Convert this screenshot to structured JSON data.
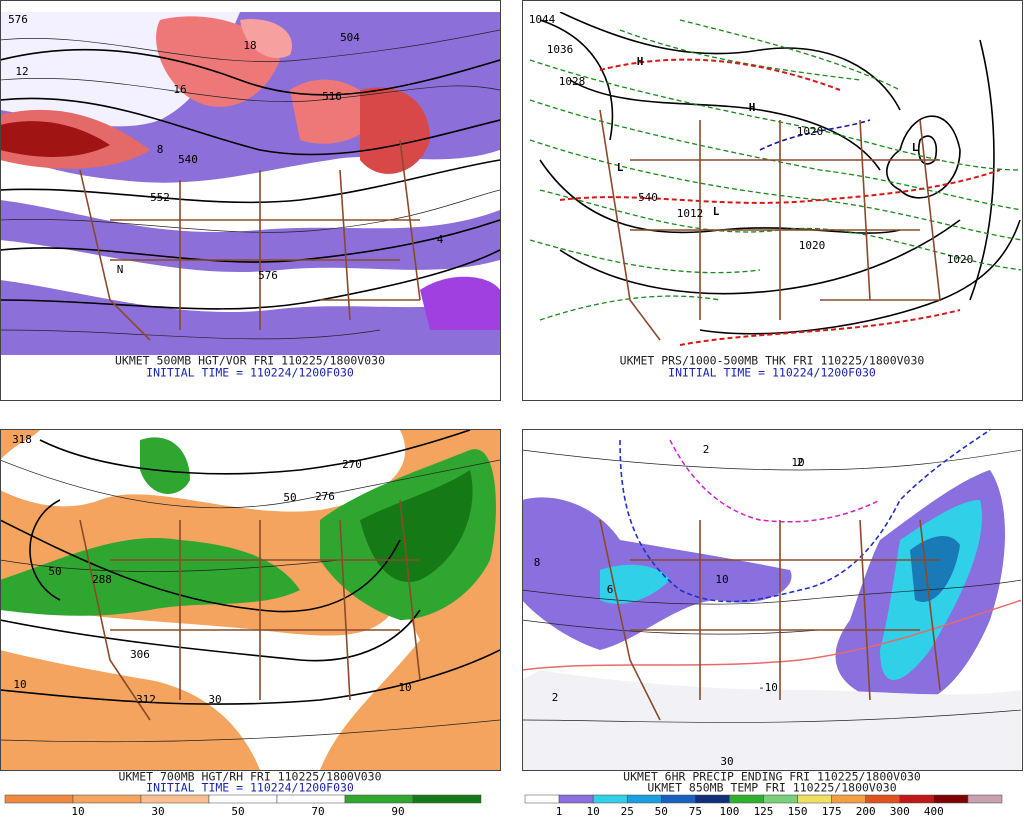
{
  "panels": [
    {
      "caption_line1": "UKMET 500MB HGT/VOR FRI 110225/1800V030",
      "caption_line2": "INITIAL TIME = 110224/1200F030",
      "labels": [
        "576",
        "540",
        "552",
        "516",
        "504",
        "576",
        "18",
        "16",
        "12",
        "8",
        "4",
        "N"
      ]
    },
    {
      "caption_line1": "UKMET PRS/1000-500MB THK FRI 110225/1800V030",
      "caption_line2": "INITIAL TIME = 110224/1200F030",
      "labels": [
        "1044",
        "1036",
        "1028",
        "1020",
        "1012",
        "1020",
        "1020",
        "H",
        "H",
        "L",
        "L",
        "L",
        "540"
      ]
    },
    {
      "caption_line1": "UKMET 700MB HGT/RH FRI 110225/1800V030",
      "caption_line2": "INITIAL TIME = 110224/1200F030",
      "labels": [
        "318",
        "306",
        "312",
        "288",
        "276",
        "270",
        "10",
        "30",
        "50",
        "50",
        "10"
      ],
      "colorbar": [
        10,
        30,
        50,
        70,
        90
      ]
    },
    {
      "caption_line1": "UKMET 6HR PRECIP ENDING FRI 110225/1800V030",
      "caption_line2": "UKMET 850MB TEMP FRI 110225/1800V030",
      "labels": [
        "8",
        "6",
        "2",
        "2",
        "10",
        "-10",
        "10",
        "30",
        "2"
      ],
      "colorbar": [
        1,
        10,
        25,
        50,
        75,
        100,
        125,
        150,
        175,
        200,
        300,
        400
      ]
    }
  ]
}
